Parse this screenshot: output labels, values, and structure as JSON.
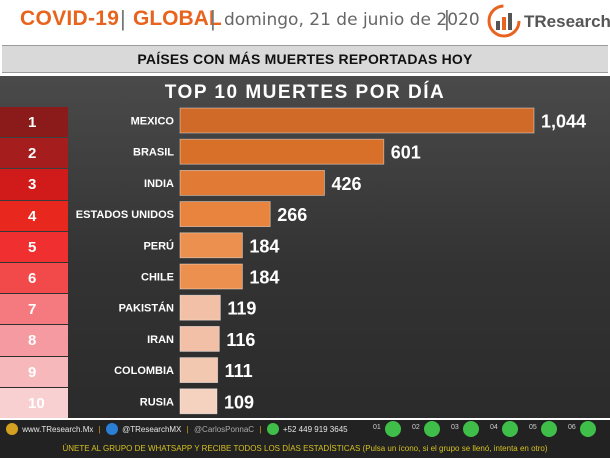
{
  "header": {
    "covid": "COVID-19",
    "separator": "|",
    "global": "GLOBAL",
    "date": "domingo, 21 de junio de 2020",
    "logo_text": "TResearch"
  },
  "subtitle": "PAÍSES CON MÁS MUERTES REPORTADAS HOY",
  "colors": {
    "bar_top": "#d9702a",
    "bar_light": "#f2c0a6",
    "rank_dark": "#8b1a1a"
  },
  "chart_data": {
    "type": "bar",
    "orientation": "horizontal",
    "title": "TOP 10 MUERTES POR DÍA",
    "ranks": [
      "1",
      "2",
      "3",
      "4",
      "5",
      "6",
      "7",
      "8",
      "9",
      "10"
    ],
    "categories": [
      "MEXICO",
      "BRASIL",
      "INDIA",
      "ESTADOS UNIDOS",
      "PERÚ",
      "CHILE",
      "PAKISTÁN",
      "IRAN",
      "COLOMBIA",
      "RUSIA"
    ],
    "values": [
      1044,
      601,
      426,
      266,
      184,
      184,
      119,
      116,
      111,
      109
    ],
    "value_labels": [
      "1,044",
      "601",
      "426",
      "266",
      "184",
      "184",
      "119",
      "116",
      "111",
      "109"
    ],
    "rank_colors": [
      "#8b1a1a",
      "#a51d1d",
      "#d11a1a",
      "#e8281e",
      "#f03030",
      "#f24a4a",
      "#f47a80",
      "#f49aa0",
      "#f7b8bc",
      "#f9d0d2"
    ],
    "bar_colors": [
      "#d06a28",
      "#d9702a",
      "#e07a34",
      "#e8843e",
      "#ec9050",
      "#ec9050",
      "#f2c0a6",
      "#f2c0a6",
      "#f2c8b0",
      "#f5d2c0"
    ],
    "xlim": [
      0,
      1044
    ]
  },
  "footer": {
    "website": "www.TResearch.Mx",
    "twitter": "@TResearchMX",
    "twitter2": "@CarlosPonnaC",
    "phone": "+52 449 919 3645",
    "groups": [
      "01",
      "02",
      "03",
      "04",
      "05",
      "06"
    ],
    "cta": "ÚNETE AL GRUPO DE WHATSAPP Y RECIBE  TODOS LOS DÍAS ESTADÍSTICAS (Pulsa un ícono, si el grupo se llenó, intenta en otro)"
  }
}
